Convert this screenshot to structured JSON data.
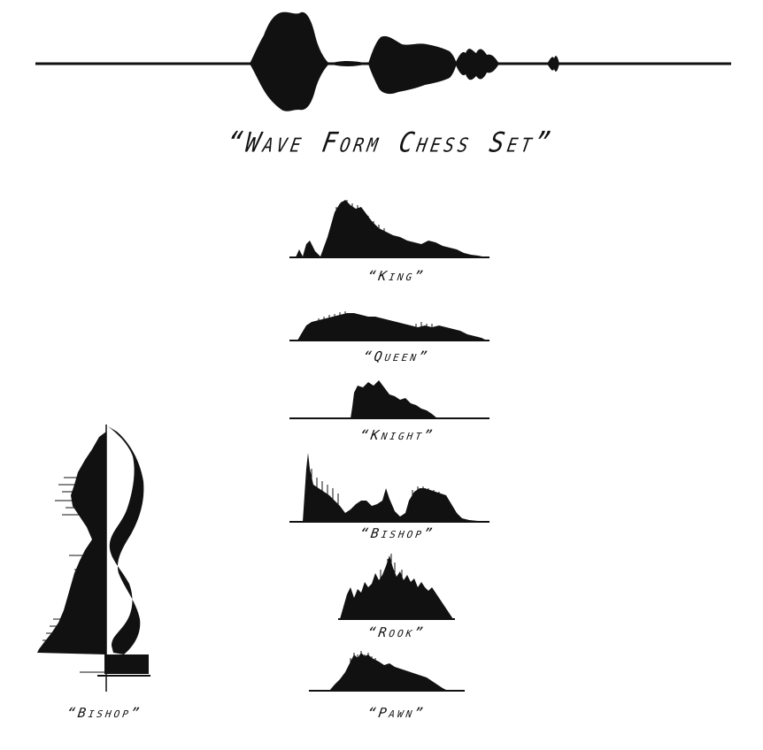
{
  "title": "“Wave Form Chess Set”",
  "pieces": {
    "king": "“King”",
    "queen": "“Queen”",
    "knight": "“Knight”",
    "bishop": "“Bishop”",
    "rook": "“Rook”",
    "pawn": "“Pawn”"
  },
  "sculpture_label": "“Bishop”",
  "colors": {
    "ink": "#111111",
    "background": "#ffffff"
  }
}
